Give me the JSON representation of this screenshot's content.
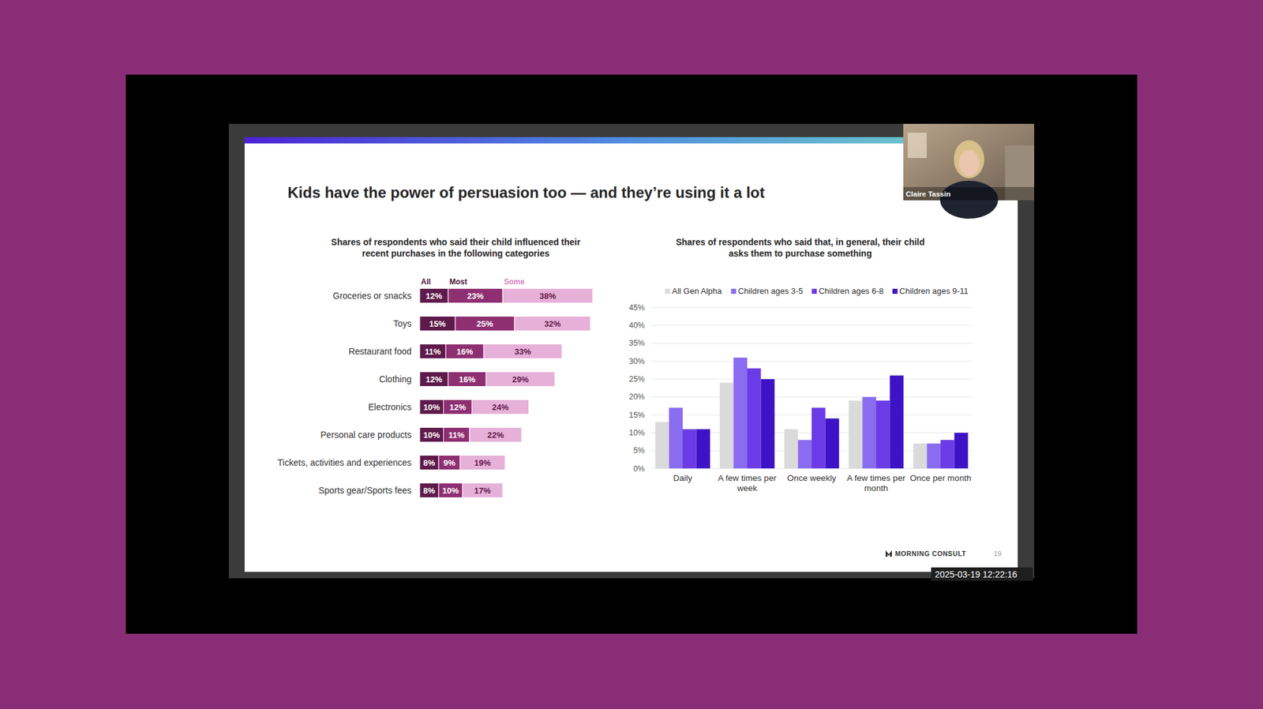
{
  "page": {
    "title": "Kids have the power of persuasion too — and they’re using it a lot",
    "speaker": "Claire Tassin",
    "brand": "MORNING CONSULT",
    "page_number": 19,
    "timestamp": "2025-03-19  12:22:16"
  },
  "chart_data": [
    {
      "type": "bar",
      "orientation": "horizontal",
      "stacked": true,
      "data_labels": true,
      "legend": "top left",
      "tick_labels": "y",
      "title": "Shares of respondents who said their child influenced their recent purchases in the following categories",
      "categories": [
        "Groceries or snacks",
        "Toys",
        "Restaurant food",
        "Clothing",
        "Electronics",
        "Personal care products",
        "Tickets, activities and experiences",
        "Sports gear/Sports fees"
      ],
      "series": [
        {
          "name": "All",
          "color": "#5e1a4b",
          "values": [
            12,
            15,
            11,
            12,
            10,
            10,
            8,
            8
          ],
          "value_labels": [
            "12%",
            "15%",
            "11%",
            "12%",
            "10%",
            "10%",
            "8%",
            "8%"
          ]
        },
        {
          "name": "Most",
          "color": "#8e2f72",
          "values": [
            23,
            25,
            16,
            16,
            12,
            11,
            9,
            10
          ],
          "value_labels": [
            "23%",
            "25%",
            "16%",
            "16%",
            "12%",
            "11%",
            "9%",
            "10%"
          ]
        },
        {
          "name": "Some",
          "color": "#e6b0d8",
          "values": [
            38,
            32,
            33,
            29,
            24,
            22,
            19,
            17
          ],
          "value_labels": [
            "38%",
            "32%",
            "33%",
            "29%",
            "24%",
            "22%",
            "19%",
            "17%"
          ]
        }
      ]
    },
    {
      "type": "bar",
      "grid": true,
      "legend": "top",
      "title": "Shares of respondents who said that, in general, their child asks them to purchase something",
      "categories": [
        "Daily",
        "A few times per week",
        "Once weekly",
        "A few times per month",
        "Once per month"
      ],
      "series": [
        {
          "name": "All Gen Alpha",
          "color": "#dadada",
          "values": [
            13,
            24,
            11,
            19,
            7
          ]
        },
        {
          "name": "Children ages 3-5",
          "color": "#8a6cf0",
          "values": [
            17,
            31,
            8,
            20,
            7
          ]
        },
        {
          "name": "Children ages 6-8",
          "color": "#6b3ce6",
          "values": [
            11,
            28,
            17,
            19,
            8
          ]
        },
        {
          "name": "Children ages 9-11",
          "color": "#3e13c6",
          "values": [
            11,
            25,
            14,
            26,
            10
          ]
        }
      ],
      "ylim": [
        0,
        45
      ],
      "yticks": [
        {
          "value": 0,
          "label": "0%"
        },
        {
          "value": 5,
          "label": "5%"
        },
        {
          "value": 10,
          "label": "10%"
        },
        {
          "value": 15,
          "label": "15%"
        },
        {
          "value": 20,
          "label": "20%"
        },
        {
          "value": 25,
          "label": "25%"
        },
        {
          "value": 30,
          "label": "30%"
        },
        {
          "value": 35,
          "label": "35%"
        },
        {
          "value": 40,
          "label": "40%"
        },
        {
          "value": 45,
          "label": "45%"
        }
      ]
    }
  ]
}
